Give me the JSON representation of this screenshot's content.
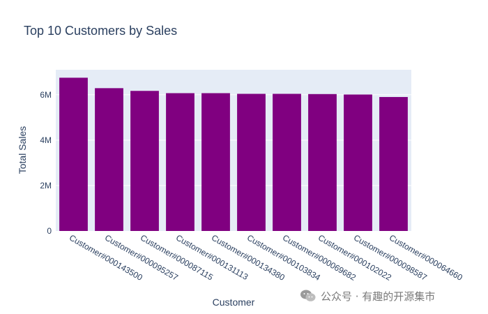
{
  "chart_data": {
    "type": "bar",
    "title": "Top 10 Customers by Sales",
    "xlabel": "Customer",
    "ylabel": "Total Sales",
    "categories": [
      "Customer#000143500",
      "Customer#000095257",
      "Customer#000087115",
      "Customer#000131113",
      "Customer#000134380",
      "Customer#000103834",
      "Customer#000069682",
      "Customer#000102022",
      "Customer#000098587",
      "Customer#000064660"
    ],
    "values": [
      6750000,
      6290000,
      6170000,
      6070000,
      6070000,
      6040000,
      6040000,
      6030000,
      6010000,
      5900000
    ],
    "ylim": [
      0,
      7100000
    ],
    "yticks": [
      0,
      2000000,
      4000000,
      6000000
    ],
    "ytick_labels": [
      "0",
      "2M",
      "4M",
      "6M"
    ],
    "grid": true,
    "colors": {
      "bar": "#800080",
      "plot_bg": "#e5ecf6",
      "grid": "#ffffff",
      "text": "#2a3f5f"
    }
  },
  "watermark": {
    "text": "公众号 · 有趣的开源集市",
    "icon": "wechat-icon"
  }
}
